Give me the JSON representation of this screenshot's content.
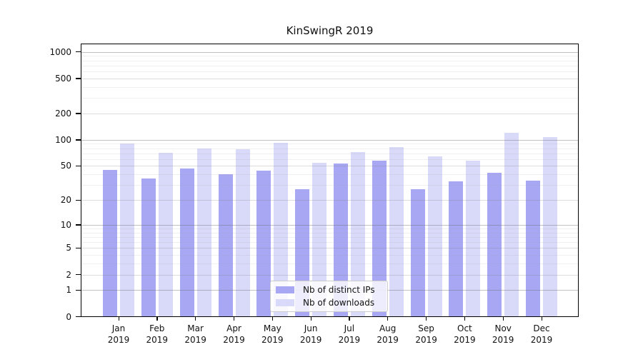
{
  "chart_data": {
    "type": "bar",
    "title": "KinSwingR 2019",
    "months": [
      "Jan",
      "Feb",
      "Mar",
      "Apr",
      "May",
      "Jun",
      "Jul",
      "Aug",
      "Sep",
      "Oct",
      "Nov",
      "Dec"
    ],
    "year": "2019",
    "series": [
      {
        "name": "Nb of distinct IPs",
        "color": "#a7a7f3",
        "values": [
          45,
          36,
          47,
          40,
          44,
          27,
          53,
          58,
          27,
          33,
          42,
          34
        ]
      },
      {
        "name": "Nb of downloads",
        "color": "#d9d9fa",
        "values": [
          90,
          71,
          79,
          78,
          92,
          54,
          73,
          82,
          65,
          58,
          120,
          108
        ]
      }
    ],
    "yscale": "log1p",
    "y_tick_labels": [
      "1000",
      "500",
      "200",
      "100",
      "50",
      "20",
      "10",
      "5",
      "2",
      "1",
      "0"
    ],
    "ylim": [
      0,
      1200
    ],
    "grid": true,
    "legend_position": "lower-center-inside"
  }
}
